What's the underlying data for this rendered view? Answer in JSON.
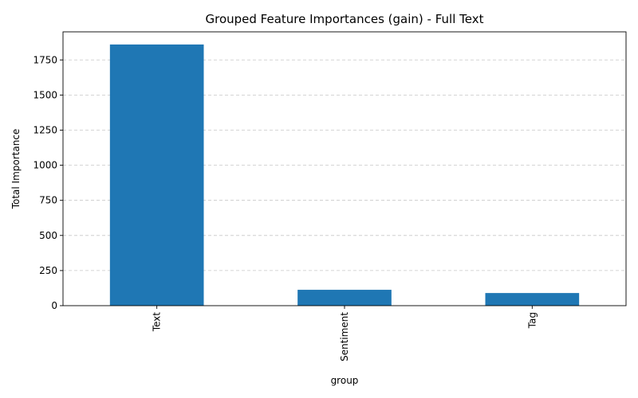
{
  "chart_data": {
    "type": "bar",
    "title": "Grouped Feature Importances (gain) - Full Text",
    "xlabel": "group",
    "ylabel": "Total Importance",
    "categories": [
      "Text",
      "Sentiment",
      "Tag"
    ],
    "values": [
      1860,
      113,
      90
    ],
    "ylim": [
      0,
      1950
    ],
    "yticks": [
      0,
      250,
      500,
      750,
      1000,
      1250,
      1500,
      1750
    ],
    "grid": "y-dashed",
    "legend": "none",
    "bar_color": "#1f77b4",
    "xtick_rotation": 90
  }
}
